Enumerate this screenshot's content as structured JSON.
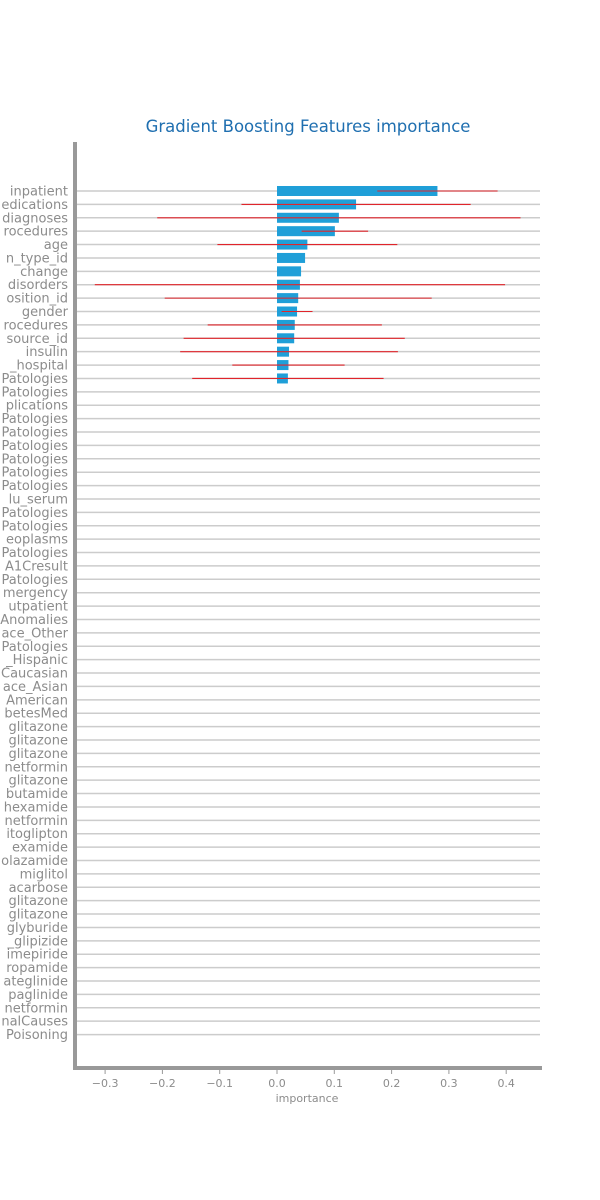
{
  "chart_data": {
    "type": "bar",
    "orientation": "horizontal",
    "title": "Gradient Boosting Features importance",
    "xlabel": "importance",
    "ylabel": "",
    "xlim": [
      -0.35,
      0.46
    ],
    "xticks": [
      -0.3,
      -0.2,
      -0.1,
      0.0,
      0.1,
      0.2,
      0.3,
      0.4
    ],
    "xtick_labels": [
      "−0.3",
      "−0.2",
      "−0.1",
      "0.0",
      "0.1",
      "0.2",
      "0.3",
      "0.4"
    ],
    "grid": "horizontal",
    "colors": {
      "bar": "#1f9fd8",
      "error": "#e0252b",
      "grid": "#cccccc",
      "axis": "#999999",
      "title": "#1f6fb0",
      "text": "#8c8c8c"
    },
    "categories": [
      "number_inpatient",
      "num_medications",
      "number_diagnoses",
      "num_procedures",
      "age",
      "admission_type_id",
      "change",
      "Mental disorders",
      "discharge_disposition_id",
      "gender",
      "num_lab_procedures",
      "admission_source_id",
      "insulin",
      "time_in_hospital",
      "Circulatory_Patologies",
      "Respiratory_Patologies",
      "Diabetes_complications",
      "Digestive_Patologies",
      "Genitourinary_Patologies",
      "Musculoskeletal_Patologies",
      "Endocrine_Patologies",
      "Skin_Patologies",
      "Metabolic_Patologies",
      "max_glu_serum",
      "Blood_Patologies",
      "Infectious_Patologies",
      "Neoplasms",
      "Nervous_Patologies",
      "A1Cresult",
      "Sense_Patologies",
      "number_emergency",
      "number_outpatient",
      "Congenital Anomalies",
      "race_Other",
      "Pregnancy_Patologies",
      "race_Hispanic",
      "race_Caucasian",
      "race_Asian",
      "race_AfricanAmerican",
      "diabetesMed",
      "metformin-rosiglitazone",
      "metformin-pioglitazone",
      "glimepiride-pioglitazone",
      "glipizide-metformin",
      "rosiglitazone",
      "tolbutamide",
      "acetohexamide",
      "glyburide-metformin",
      "sitoglipton",
      "examide",
      "tolazamide",
      "miglitol",
      "acarbose",
      "troglitazone",
      "pioglitazone",
      "glyburide",
      "glipizide",
      "glimepiride",
      "chlorpropamide",
      "nateglinide",
      "repaglinide",
      "metformin",
      "ExternalCauses",
      "Injury_Poisoning"
    ],
    "visible_labels": [
      "inpatient",
      "edications",
      "diagnoses",
      "rocedures",
      "age",
      "n_type_id",
      "change",
      "disorders",
      "osition_id",
      "gender",
      "rocedures",
      "source_id",
      "insulin",
      "_hospital",
      "Patologies",
      "Patologies",
      "plications",
      "Patologies",
      "Patologies",
      "Patologies",
      "Patologies",
      "Patologies",
      "Patologies",
      "lu_serum",
      "Patologies",
      "Patologies",
      "eoplasms",
      "Patologies",
      "A1Cresult",
      "Patologies",
      "mergency",
      "utpatient",
      "Anomalies",
      "ace_Other",
      "Patologies",
      "_Hispanic",
      "Caucasian",
      "ace_Asian",
      "American",
      "betesMed",
      "glitazone",
      "glitazone",
      "glitazone",
      "netformin",
      "glitazone",
      "butamide",
      "hexamide",
      "netformin",
      "itoglipton",
      "examide",
      "olazamide",
      "miglitol",
      "acarbose",
      "glitazone",
      "glitazone",
      "glyburide",
      "_glipizide",
      "imepiride",
      "ropamide",
      "ateglinide",
      "paglinide",
      "netformin",
      "nalCauses",
      "Poisoning"
    ],
    "values": [
      0.28,
      0.138,
      0.108,
      0.101,
      0.053,
      0.049,
      0.042,
      0.04,
      0.037,
      0.035,
      0.031,
      0.03,
      0.021,
      0.02,
      0.019,
      0,
      0,
      0,
      0,
      0,
      0,
      0,
      0,
      0,
      0,
      0,
      0,
      0,
      0,
      0,
      0,
      0,
      0,
      0,
      0,
      0,
      0,
      0,
      0,
      0,
      0,
      0,
      0,
      0,
      0,
      0,
      0,
      0,
      0,
      0,
      0,
      0,
      0,
      0,
      0,
      0,
      0,
      0,
      0,
      0,
      0,
      0,
      0,
      0
    ],
    "errors": [
      0.105,
      0.2,
      0.317,
      0.058,
      0.157,
      0,
      0,
      0.358,
      0.233,
      0.027,
      0.152,
      0.193,
      0.19,
      0.098,
      0.167,
      0,
      0,
      0,
      0,
      0,
      0,
      0,
      0,
      0,
      0,
      0,
      0,
      0,
      0,
      0,
      0,
      0,
      0,
      0,
      0,
      0,
      0,
      0,
      0,
      0,
      0,
      0,
      0,
      0,
      0,
      0,
      0,
      0,
      0,
      0,
      0,
      0,
      0,
      0,
      0,
      0,
      0,
      0,
      0,
      0,
      0,
      0,
      0,
      0
    ]
  }
}
